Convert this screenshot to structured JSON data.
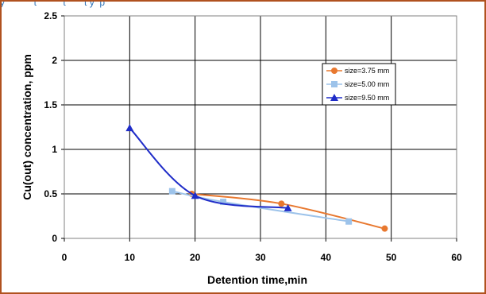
{
  "top_caption": "y           t          t       t y  p",
  "colors": {
    "frame": "#b0521f",
    "plot_border": "#808080",
    "grid": "#000000",
    "size_375": "#e8782f",
    "size_500": "#9dc3ea",
    "size_950": "#1f2cc8"
  },
  "chart_data": {
    "type": "line",
    "title": "",
    "xlabel": "Detention time,min",
    "ylabel": "Cu(out) concentration, ppm",
    "xlim": [
      0,
      60
    ],
    "ylim": [
      0,
      2.5
    ],
    "xticks": [
      "0",
      "10",
      "20",
      "30",
      "40",
      "50",
      "60"
    ],
    "yticks": [
      "0",
      "0.5",
      "1",
      "1.5",
      "2",
      "2.5"
    ],
    "grid": "major-both",
    "legend_position": "right-top",
    "series": [
      {
        "name": "size=3.75 mm",
        "color": "#e8782f",
        "marker": "circle",
        "x": [
          19.5,
          33.2,
          49
        ],
        "y": [
          0.5,
          0.39,
          0.11
        ]
      },
      {
        "name": "size=5.00 mm",
        "color": "#9dc3ea",
        "marker": "square",
        "x": [
          16.5,
          24.3,
          43.5
        ],
        "y": [
          0.53,
          0.41,
          0.19
        ]
      },
      {
        "name": "size=9.50 mm",
        "color": "#1f2cc8",
        "marker": "triangle",
        "x": [
          10,
          20,
          34.2
        ],
        "y": [
          1.24,
          0.48,
          0.34
        ]
      }
    ]
  }
}
